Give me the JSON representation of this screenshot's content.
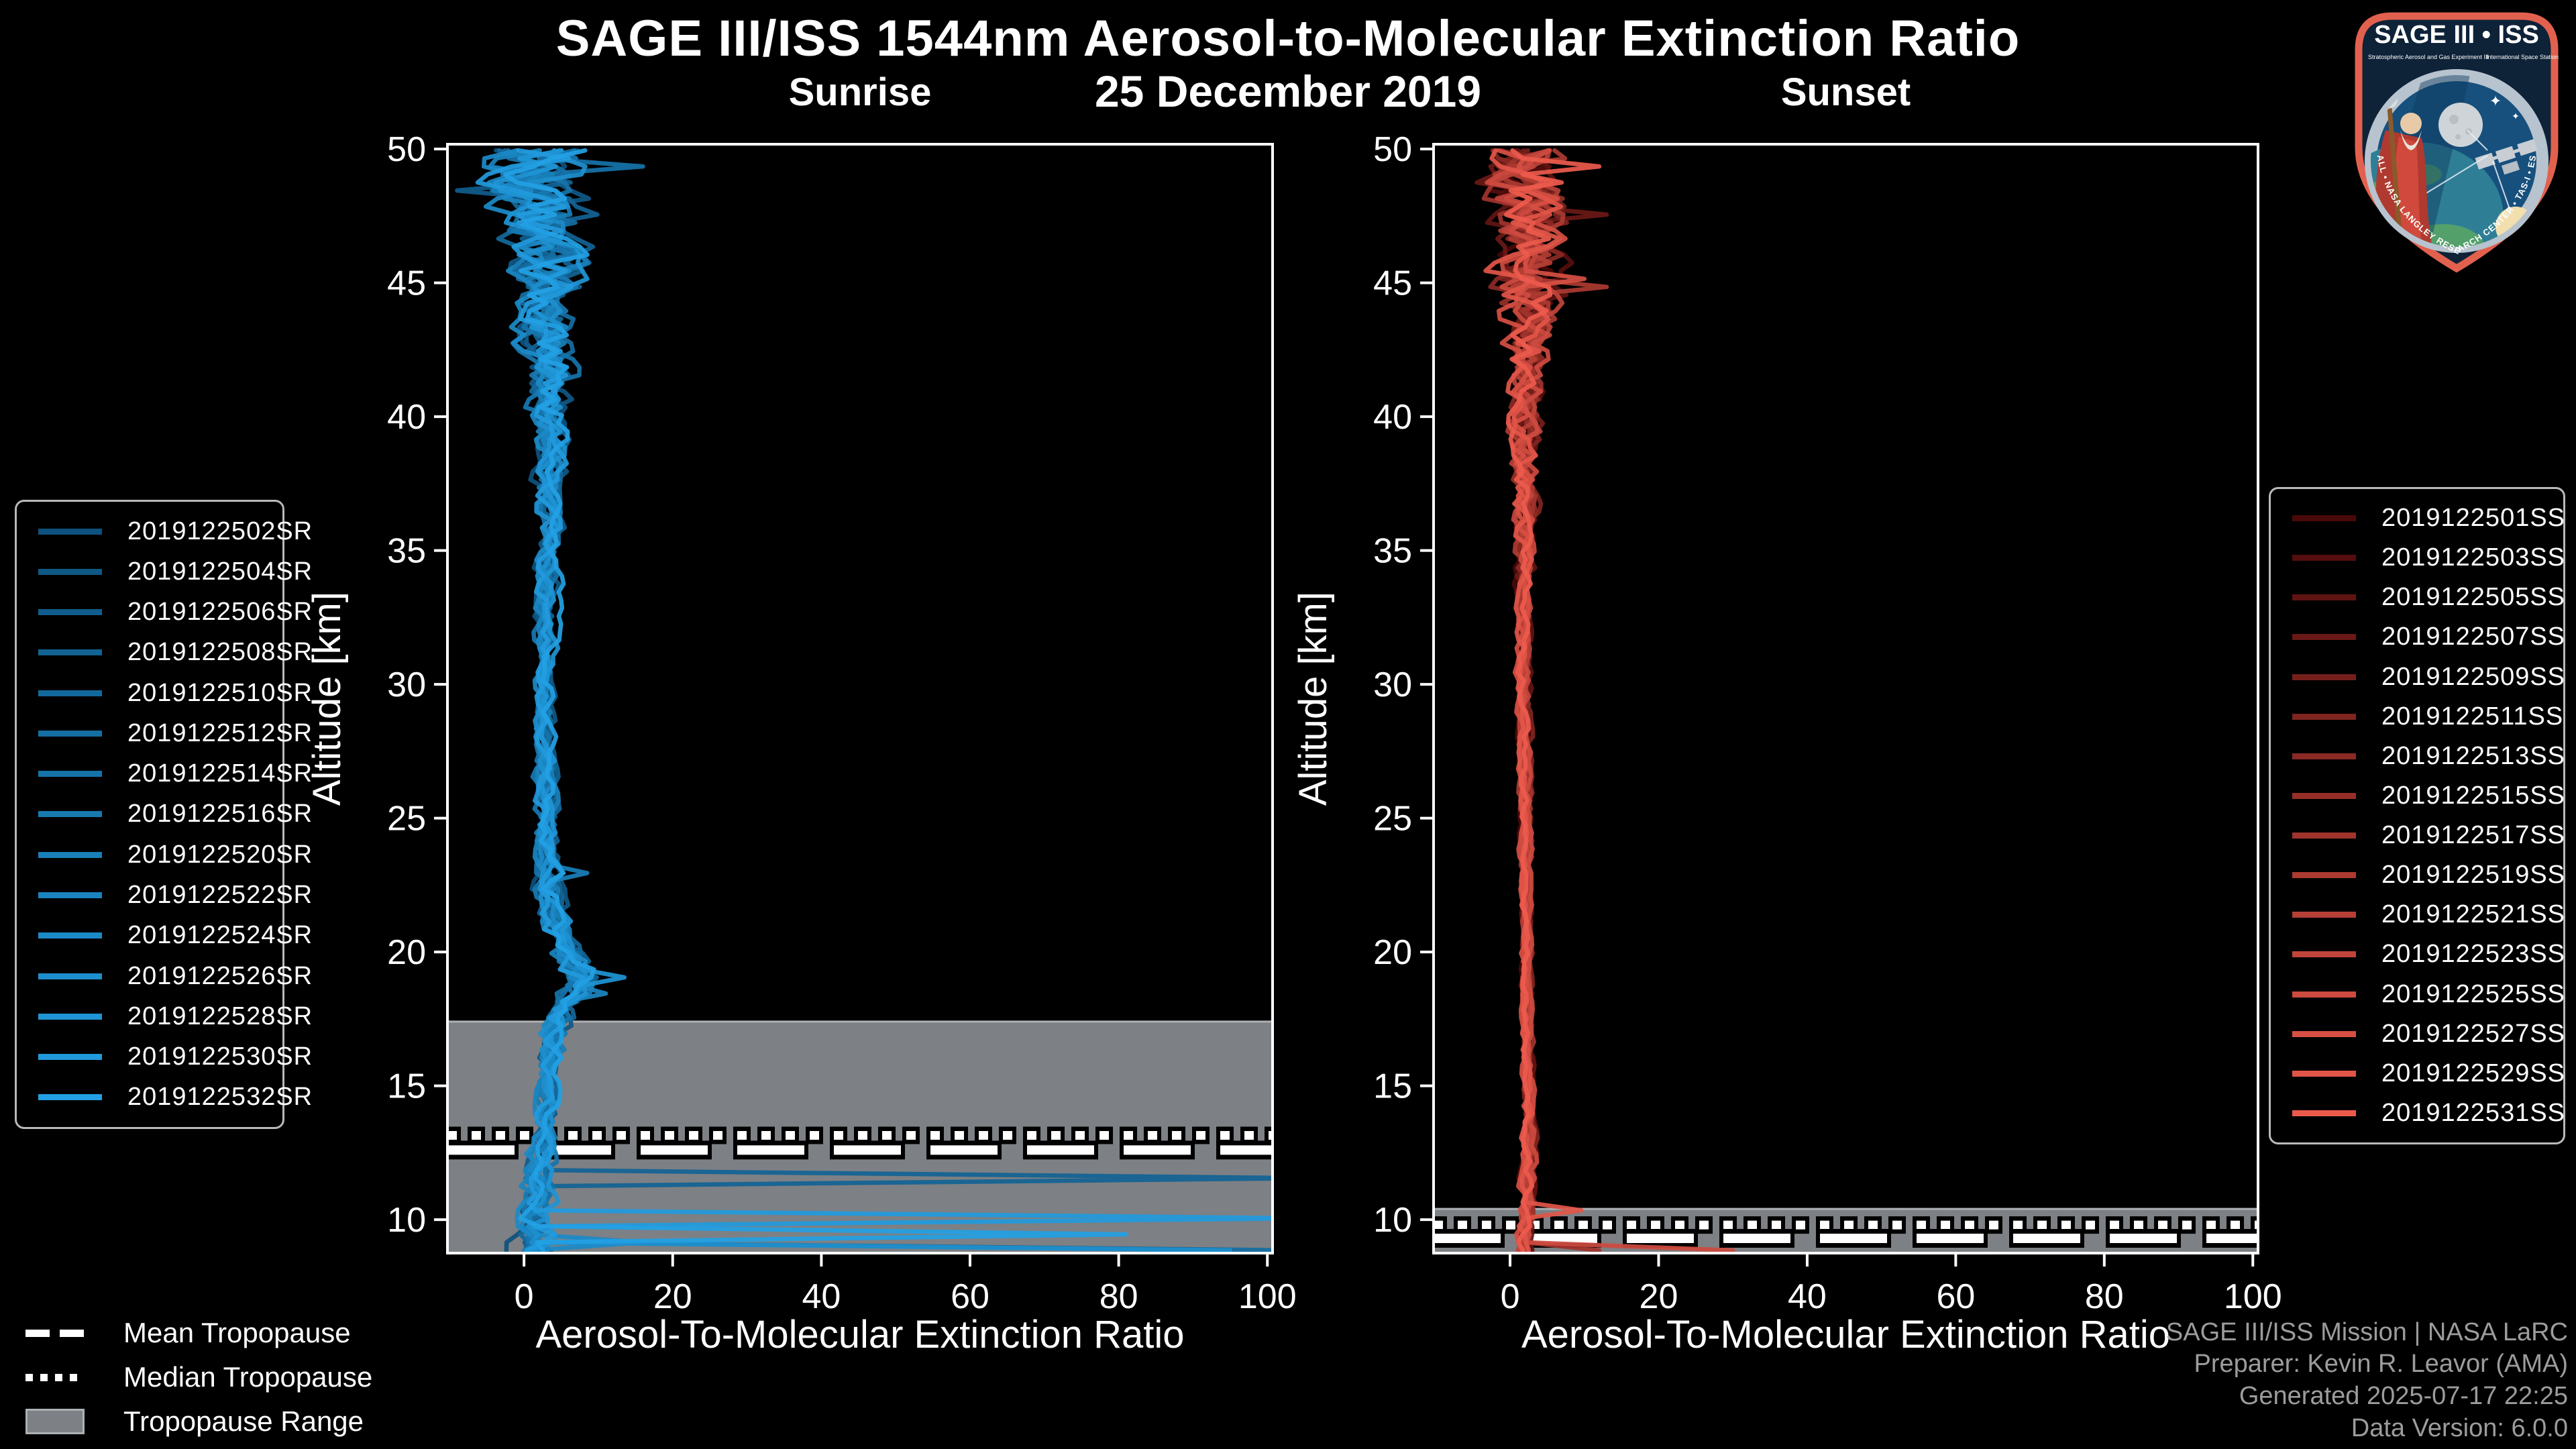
{
  "header": {
    "title": "SAGE III/ISS 1544nm Aerosol-to-Molecular Extinction Ratio",
    "subtitle": "25 December 2019"
  },
  "tropopause_legend": {
    "mean_label": "Mean Tropopause",
    "median_label": "Median Tropopause",
    "range_label": "Tropopause Range"
  },
  "credits": {
    "line1": "SAGE III/ISS Mission | NASA LaRC",
    "line2": "Preparer: Kevin R. Leavor (AMA)",
    "line3": "Generated 2025-07-17 22:25",
    "line4": "Data Version: 6.0.0"
  },
  "logo": {
    "title": "SAGE III • ISS",
    "subtitle_left": "Stratospheric Aerosol and Gas Experiment III",
    "subtitle_right": "International Space Station",
    "ring_text": "BALL • NASA LANGLEY RESEARCH CENTER • TAS-I • ESA"
  },
  "colors": {
    "background": "#000000",
    "frame": "#ffffff",
    "band": "#7d8084",
    "band_edge": "#aeb1b4",
    "credits_text": "#9c9c9c",
    "sunrise_color_start": "#0d527e",
    "sunrise_color_end": "#22a0e4",
    "sunset_color_start": "#4a0909",
    "sunset_color_end": "#ec5a4c"
  },
  "chart_data": [
    {
      "type": "line",
      "panel": "Sunrise",
      "xlabel": "Aerosol-To-Molecular Extinction Ratio",
      "ylabel": "Altitude [km]",
      "xlim": [
        -10.3,
        100.7
      ],
      "ylim": [
        8.75,
        50.18
      ],
      "xticks": [
        0,
        20,
        40,
        60,
        80,
        100
      ],
      "yticks": [
        10,
        15,
        20,
        25,
        30,
        35,
        40,
        45,
        50
      ],
      "grid": false,
      "legend_position": "outside-left",
      "color_start": "#0d527e",
      "color_end": "#22a0e4",
      "series_ids": [
        "2019122502SR",
        "2019122504SR",
        "2019122506SR",
        "2019122508SR",
        "2019122510SR",
        "2019122512SR",
        "2019122514SR",
        "2019122516SR",
        "2019122520SR",
        "2019122522SR",
        "2019122524SR",
        "2019122526SR",
        "2019122528SR",
        "2019122530SR",
        "2019122532SR"
      ],
      "profile_base": [
        [
          50,
          2.0
        ],
        [
          48,
          2.6
        ],
        [
          46,
          3.0
        ],
        [
          44,
          3.2
        ],
        [
          42,
          3.5
        ],
        [
          40,
          3.8
        ],
        [
          38,
          3.6
        ],
        [
          36,
          3.4
        ],
        [
          34,
          3.2
        ],
        [
          32,
          3.0
        ],
        [
          30,
          2.8
        ],
        [
          28,
          2.8
        ],
        [
          26,
          3.0
        ],
        [
          24,
          3.2
        ],
        [
          22,
          3.6
        ],
        [
          21,
          4.2
        ],
        [
          20,
          5.5
        ],
        [
          19.5,
          7.0
        ],
        [
          19,
          8.0
        ],
        [
          18.5,
          7.0
        ],
        [
          18,
          5.5
        ],
        [
          17,
          4.2
        ],
        [
          16,
          3.6
        ],
        [
          15,
          3.2
        ],
        [
          14,
          3.0
        ],
        [
          13,
          2.8
        ],
        [
          12,
          2.4
        ],
        [
          11,
          2.0
        ],
        [
          10,
          1.6
        ],
        [
          9,
          1.2
        ],
        [
          8.8,
          1.2
        ]
      ],
      "jitter_amplitude": [
        [
          50,
          7.0
        ],
        [
          49,
          7.0
        ],
        [
          48,
          6.0
        ],
        [
          47,
          5.5
        ],
        [
          46,
          5.0
        ],
        [
          45,
          4.5
        ],
        [
          44,
          4.0
        ],
        [
          43,
          3.6
        ],
        [
          42,
          3.4
        ],
        [
          41,
          2.6
        ],
        [
          40,
          2.2
        ],
        [
          38,
          1.8
        ],
        [
          36,
          1.5
        ],
        [
          34,
          1.3
        ],
        [
          32,
          1.1
        ],
        [
          30,
          1.0
        ],
        [
          28,
          1.0
        ],
        [
          26,
          1.1
        ],
        [
          24,
          1.3
        ],
        [
          22,
          1.5
        ],
        [
          20,
          2.2
        ],
        [
          19,
          2.6
        ],
        [
          18,
          2.0
        ],
        [
          16,
          1.4
        ],
        [
          14,
          1.3
        ],
        [
          12,
          1.6
        ],
        [
          11,
          1.9
        ],
        [
          10,
          2.2
        ],
        [
          9,
          2.6
        ],
        [
          8.8,
          2.6
        ]
      ],
      "outliers": [
        {
          "series": 3,
          "altitude": 11.55,
          "ratio": 105
        },
        {
          "series": 13,
          "altitude": 10.0,
          "ratio": 105
        },
        {
          "series": 14,
          "altitude": 9.55,
          "ratio": 81
        },
        {
          "series": 5,
          "altitude": 9.0,
          "ratio": 105
        },
        {
          "series": 11,
          "altitude": 8.85,
          "ratio": 95
        },
        {
          "series": 12,
          "altitude": 19.0,
          "ratio": 13.5
        },
        {
          "series": 9,
          "altitude": 18.4,
          "ratio": 11
        },
        {
          "series": 10,
          "altitude": 9.3,
          "ratio": 16
        },
        {
          "series": 8,
          "altitude": 23.0,
          "ratio": 8.5
        },
        {
          "series": 6,
          "altitude": 49.4,
          "ratio": 16
        },
        {
          "series": 2,
          "altitude": 48.6,
          "ratio": -9
        }
      ],
      "tropopause": {
        "mean": 12.6,
        "median": 13.15,
        "range_top": 17.4,
        "range_bottom": 8.75
      }
    },
    {
      "type": "line",
      "panel": "Sunset",
      "xlabel": "Aerosol-To-Molecular Extinction Ratio",
      "ylabel": "Altitude [km]",
      "xlim": [
        -10.3,
        100.7
      ],
      "ylim": [
        8.75,
        50.18
      ],
      "xticks": [
        0,
        20,
        40,
        60,
        80,
        100
      ],
      "yticks": [
        10,
        15,
        20,
        25,
        30,
        35,
        40,
        45,
        50
      ],
      "grid": false,
      "legend_position": "outside-right",
      "color_start": "#4a0909",
      "color_end": "#ec5a4c",
      "series_ids": [
        "2019122501SS",
        "2019122503SS",
        "2019122505SS",
        "2019122507SS",
        "2019122509SS",
        "2019122511SS",
        "2019122513SS",
        "2019122515SS",
        "2019122517SS",
        "2019122519SS",
        "2019122521SS",
        "2019122523SS",
        "2019122525SS",
        "2019122527SS",
        "2019122529SS",
        "2019122531SS"
      ],
      "profile_base": [
        [
          50,
          2.0
        ],
        [
          48,
          2.2
        ],
        [
          46,
          2.5
        ],
        [
          45,
          2.8
        ],
        [
          44,
          2.6
        ],
        [
          42,
          2.4
        ],
        [
          40,
          2.3
        ],
        [
          38,
          2.2
        ],
        [
          36,
          2.1
        ],
        [
          34,
          2.0
        ],
        [
          30,
          2.0
        ],
        [
          26,
          2.1
        ],
        [
          22,
          2.2
        ],
        [
          20,
          2.3
        ],
        [
          18,
          2.4
        ],
        [
          16,
          2.5
        ],
        [
          14,
          2.6
        ],
        [
          12,
          2.6
        ],
        [
          11,
          2.5
        ],
        [
          10,
          2.3
        ],
        [
          9.5,
          2.0
        ],
        [
          9,
          1.8
        ],
        [
          8.8,
          1.8
        ]
      ],
      "jitter_amplitude": [
        [
          50,
          5.0
        ],
        [
          49,
          5.5
        ],
        [
          48,
          5.0
        ],
        [
          47,
          4.6
        ],
        [
          46,
          4.5
        ],
        [
          45,
          4.5
        ],
        [
          44,
          3.6
        ],
        [
          43,
          3.0
        ],
        [
          42,
          2.6
        ],
        [
          41,
          2.2
        ],
        [
          40,
          2.0
        ],
        [
          38,
          1.6
        ],
        [
          36,
          1.3
        ],
        [
          34,
          1.0
        ],
        [
          32,
          0.8
        ],
        [
          30,
          0.7
        ],
        [
          28,
          0.6
        ],
        [
          26,
          0.55
        ],
        [
          24,
          0.5
        ],
        [
          22,
          0.45
        ],
        [
          20,
          0.45
        ],
        [
          18,
          0.5
        ],
        [
          16,
          0.55
        ],
        [
          14,
          0.6
        ],
        [
          12,
          0.7
        ],
        [
          11,
          0.8
        ],
        [
          10,
          0.8
        ],
        [
          9,
          1.0
        ],
        [
          8.8,
          1.2
        ]
      ],
      "outliers": [
        {
          "series": 13,
          "altitude": 45.55,
          "ratio": -8
        },
        {
          "series": 13,
          "altitude": 45.25,
          "ratio": 10
        },
        {
          "series": 14,
          "altitude": 10.45,
          "ratio": 9.6
        },
        {
          "series": 12,
          "altitude": 8.6,
          "ratio": 30
        },
        {
          "series": 8,
          "altitude": 8.9,
          "ratio": 12
        },
        {
          "series": 15,
          "altitude": 49.5,
          "ratio": 12
        },
        {
          "series": 3,
          "altitude": 47.6,
          "ratio": 13
        },
        {
          "series": 9,
          "altitude": 44.9,
          "ratio": 13
        }
      ],
      "tropopause": {
        "mean": 9.3,
        "median": 9.8,
        "range_top": 10.4,
        "range_bottom": 8.75
      }
    }
  ]
}
